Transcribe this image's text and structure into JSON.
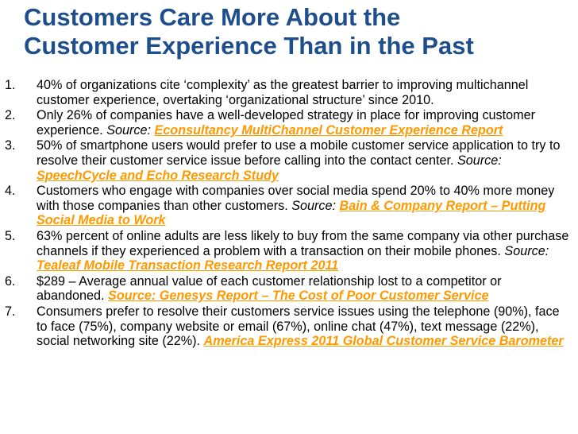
{
  "title": {
    "line1": "Customers Care More About the",
    "line2": "Customer Experience Than in the Past"
  },
  "items": [
    {
      "number": "1.",
      "text": "40% of organizations cite ‘complexity’ as the greatest barrier to improving multichannel customer experience, overtaking ‘organizational structure’ since 2010.",
      "source_label": "",
      "source_link": ""
    },
    {
      "number": "2.",
      "text": "Only 26% of companies have a well-developed strategy in place for improving customer experience.",
      "source_label": "Source:",
      "source_link": "Econsultancy MultiChannel Customer Experience Report"
    },
    {
      "number": "3.",
      "text": "50% of smartphone users would prefer to use a mobile customer service application to try to resolve their customer service issue before calling into the contact center.",
      "source_label": "Source:",
      "source_link": "SpeechCycle and Echo Research Study"
    },
    {
      "number": "4.",
      "text": "Customers who engage with companies over social media spend 20% to 40% more money with those companies than other customers.",
      "source_label": "Source:",
      "source_link": "Bain & Company Report – Putting Social Media to Work"
    },
    {
      "number": "5.",
      "text": "63% percent of online adults are less likely to buy from the same company via other purchase channels if they experienced a problem with a transaction on their mobile phones.",
      "source_label": "Source:",
      "source_link": "Tealeaf Mobile Transaction Research Report 2011"
    },
    {
      "number": "6.",
      "text": "$289 – Average annual value of each customer relationship lost to a competitor or abandoned.",
      "source_label": "",
      "source_link": "Source: Genesys Report – The Cost of Poor Customer Service"
    },
    {
      "number": "7.",
      "text": "Consumers prefer to resolve their customers service issues using the telephone (90%), face to face (75%), company website or email (67%), online chat (47%), text message (22%), social networking site (22%).",
      "source_label": "",
      "source_link": "America Express 2011 Global Customer Service Barometer"
    }
  ],
  "colors": {
    "title": "#1f4e8c",
    "link": "#ff9900",
    "body_text": "#000000"
  }
}
